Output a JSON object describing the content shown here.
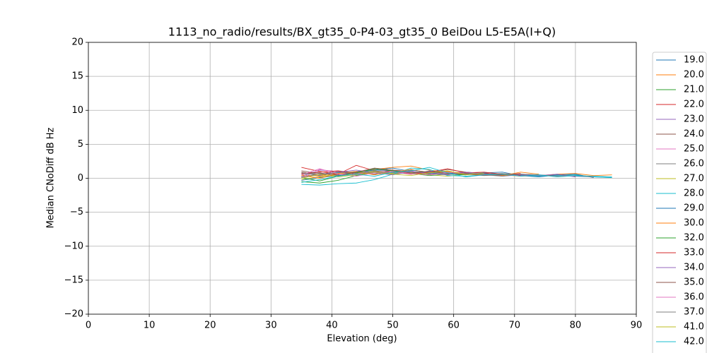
{
  "chart_data": {
    "type": "line",
    "title": "1113_no_radio/results/BX_gt35_0-P4-03_gt35_0 BeiDou L5-E5A(I+Q)",
    "x_label": "Elevation (deg)",
    "y_label": "Median CNoDiff dB Hz",
    "xlim": [
      0,
      90
    ],
    "ylim": [
      -20,
      20
    ],
    "xticks": [
      0,
      10,
      20,
      30,
      40,
      50,
      60,
      70,
      80,
      90
    ],
    "yticks": [
      {
        "value": -20,
        "label": "−20"
      },
      {
        "value": -15,
        "label": "−15"
      },
      {
        "value": -10,
        "label": "−10"
      },
      {
        "value": -5,
        "label": "−5"
      },
      0,
      5,
      10,
      15,
      20
    ],
    "grid": true,
    "x": [
      35,
      38,
      41,
      44,
      47,
      50,
      53,
      56,
      59,
      62,
      65,
      68,
      71,
      74,
      77,
      80,
      83,
      86
    ],
    "series": [
      {
        "name": "19.0",
        "color": "#1f77b4",
        "values": [
          0.2,
          0.6,
          0.8,
          1.0,
          1.2,
          1.1,
          0.9,
          0.7,
          0.8,
          0.6,
          0.5,
          0.4,
          0.6,
          0.5,
          0.4,
          0.3,
          0.2,
          0.1
        ]
      },
      {
        "name": "20.0",
        "color": "#ff7f0e",
        "values": [
          0.5,
          0.3,
          0.7,
          0.9,
          1.3,
          1.6,
          1.8,
          1.2,
          0.9,
          0.7,
          0.6,
          0.5,
          0.3,
          0.4,
          0.6,
          0.7,
          0.4,
          0.5
        ]
      },
      {
        "name": "21.0",
        "color": "#2ca02c",
        "values": [
          -0.5,
          -0.7,
          -0.3,
          0.4,
          0.9,
          1.0,
          0.8,
          0.6,
          0.9,
          0.7,
          null,
          null,
          null,
          null,
          null,
          null,
          null,
          null
        ]
      },
      {
        "name": "22.0",
        "color": "#d62728",
        "values": [
          1.6,
          1.0,
          0.6,
          1.9,
          1.1,
          0.8,
          1.2,
          0.9,
          0.7,
          0.6,
          0.8,
          0.5,
          0.7,
          null,
          null,
          null,
          null,
          null
        ]
      },
      {
        "name": "23.0",
        "color": "#9467bd",
        "values": [
          0.3,
          1.2,
          1.0,
          0.7,
          1.4,
          0.9,
          0.6,
          1.1,
          0.8,
          0.9,
          0.7,
          0.6,
          null,
          null,
          null,
          null,
          null,
          null
        ]
      },
      {
        "name": "24.0",
        "color": "#8c564b",
        "values": [
          0.9,
          0.5,
          1.1,
          0.8,
          0.6,
          1.2,
          1.0,
          0.8,
          1.3,
          0.9,
          0.7,
          0.5,
          0.6,
          0.4,
          0.5,
          0.3,
          null,
          null
        ]
      },
      {
        "name": "25.0",
        "color": "#e377c2",
        "values": [
          0.0,
          1.3,
          0.9,
          0.6,
          1.0,
          0.7,
          1.1,
          0.5,
          0.9,
          0.6,
          0.4,
          null,
          null,
          null,
          null,
          null,
          null,
          null
        ]
      },
      {
        "name": "26.0",
        "color": "#7f7f7f",
        "values": [
          0.6,
          0.8,
          0.4,
          1.0,
          0.8,
          0.6,
          0.9,
          1.0,
          0.6,
          0.8,
          0.6,
          0.7,
          0.5,
          0.3,
          0.4,
          null,
          null,
          null
        ]
      },
      {
        "name": "27.0",
        "color": "#bcbd22",
        "values": [
          -0.2,
          0.2,
          0.5,
          0.8,
          1.1,
          0.7,
          0.9,
          0.5,
          0.3,
          0.6,
          0.8,
          null,
          null,
          null,
          null,
          null,
          null,
          null
        ]
      },
      {
        "name": "28.0",
        "color": "#17becf",
        "values": [
          -0.9,
          -1.0,
          -0.8,
          -0.7,
          -0.2,
          0.6,
          1.5,
          1.3,
          0.4,
          0.3,
          0.5,
          0.6,
          0.4,
          0.3,
          0.4,
          0.5,
          0.2,
          0.1
        ]
      },
      {
        "name": "29.0",
        "color": "#1f77b4",
        "values": [
          -0.3,
          0.1,
          0.4,
          0.9,
          1.2,
          1.5,
          1.0,
          0.7,
          0.6,
          0.5,
          0.8,
          0.9,
          0.4,
          0.2,
          0.5,
          0.6,
          0.1,
          null
        ]
      },
      {
        "name": "30.0",
        "color": "#ff7f0e",
        "values": [
          0.4,
          0.0,
          0.7,
          1.0,
          0.5,
          0.9,
          1.3,
          0.8,
          1.0,
          0.7,
          0.5,
          0.4,
          0.9,
          0.6,
          null,
          null,
          null,
          null
        ]
      },
      {
        "name": "32.0",
        "color": "#2ca02c",
        "values": [
          0.1,
          -0.4,
          0.3,
          0.8,
          1.4,
          1.1,
          0.7,
          0.4,
          0.6,
          0.5,
          null,
          null,
          null,
          null,
          null,
          null,
          null,
          null
        ]
      },
      {
        "name": "33.0",
        "color": "#d62728",
        "values": [
          0.7,
          0.9,
          1.1,
          0.5,
          0.9,
          1.0,
          0.6,
          0.9,
          1.4,
          0.8,
          0.9,
          0.6,
          0.4,
          null,
          null,
          null,
          null,
          null
        ]
      },
      {
        "name": "34.0",
        "color": "#9467bd",
        "values": [
          0.2,
          0.5,
          0.9,
          1.2,
          0.8,
          0.5,
          1.0,
          0.7,
          0.5,
          0.9,
          0.6,
          0.3,
          0.5,
          0.4,
          0.6,
          0.2,
          null,
          null
        ]
      },
      {
        "name": "35.0",
        "color": "#8c564b",
        "values": [
          1.1,
          0.7,
          0.5,
          0.9,
          1.5,
          1.2,
          0.8,
          1.0,
          0.7,
          0.6,
          0.4,
          0.5,
          null,
          null,
          null,
          null,
          null,
          null
        ]
      },
      {
        "name": "36.0",
        "color": "#e377c2",
        "values": [
          0.5,
          1.4,
          0.6,
          0.3,
          0.8,
          1.0,
          0.7,
          0.5,
          0.8,
          null,
          null,
          null,
          null,
          null,
          null,
          null,
          null,
          null
        ]
      },
      {
        "name": "37.0",
        "color": "#7f7f7f",
        "values": [
          0.8,
          0.4,
          0.9,
          0.7,
          1.0,
          0.8,
          1.2,
          0.9,
          0.6,
          0.7,
          0.5,
          0.3,
          0.6,
          0.5,
          0.3,
          0.4,
          0.2,
          null
        ]
      },
      {
        "name": "41.0",
        "color": "#bcbd22",
        "values": [
          0.0,
          0.6,
          0.2,
          0.5,
          0.9,
          0.6,
          0.4,
          0.8,
          1.1,
          0.5,
          0.7,
          null,
          null,
          null,
          null,
          null,
          null,
          null
        ]
      },
      {
        "name": "42.0",
        "color": "#17becf",
        "values": [
          -0.6,
          -0.2,
          0.3,
          0.6,
          0.3,
          0.9,
          1.1,
          1.6,
          0.8,
          0.2,
          0.5,
          0.6,
          0.3,
          0.5,
          0.2,
          0.4,
          0.3,
          0.2
        ]
      }
    ]
  }
}
